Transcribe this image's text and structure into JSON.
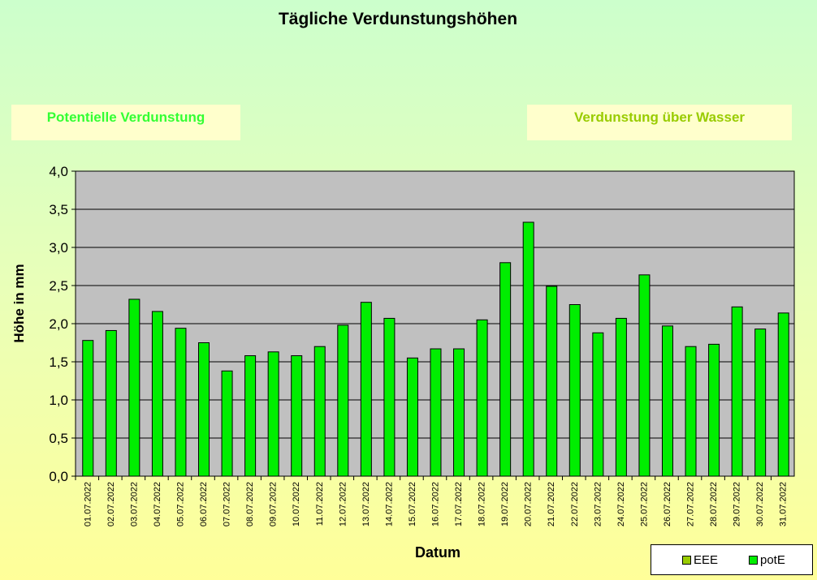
{
  "chart_data": {
    "type": "bar",
    "title": "Tägliche Verdunstungshöhen",
    "xlabel": "Datum",
    "ylabel": "Höhe in mm",
    "ylim": [
      0,
      4
    ],
    "yticks": [
      "0,0",
      "0,5",
      "1,0",
      "1,5",
      "2,0",
      "2,5",
      "3,0",
      "3,5",
      "4,0"
    ],
    "grid": true,
    "legend_position": "bottom-right",
    "categories": [
      "01.07.2022",
      "02.07.2022",
      "03.07.2022",
      "04.07.2022",
      "05.07.2022",
      "06.07.2022",
      "07.07.2022",
      "08.07.2022",
      "09.07.2022",
      "10.07.2022",
      "11.07.2022",
      "12.07.2022",
      "13.07.2022",
      "14.07.2022",
      "15.07.2022",
      "16.07.2022",
      "17.07.2022",
      "18.07.2022",
      "19.07.2022",
      "20.07.2022",
      "21.07.2022",
      "22.07.2022",
      "23.07.2022",
      "24.07.2022",
      "25.07.2022",
      "26.07.2022",
      "27.07.2022",
      "28.07.2022",
      "29.07.2022",
      "30.07.2022",
      "31.07.2022"
    ],
    "series": [
      {
        "name": "EEE",
        "color": "#99cc00",
        "values": [
          0,
          0,
          0,
          0,
          0,
          0,
          0,
          0,
          0,
          0,
          0,
          0,
          0,
          0,
          0,
          0,
          0,
          0,
          0,
          0,
          0,
          0,
          0,
          0,
          0,
          0,
          0,
          0,
          0,
          0,
          0
        ]
      },
      {
        "name": "potE",
        "color": "#00ee00",
        "values": [
          1.78,
          1.91,
          2.32,
          2.16,
          1.94,
          1.75,
          1.38,
          1.58,
          1.63,
          1.58,
          1.7,
          1.98,
          2.28,
          2.07,
          1.55,
          1.67,
          1.67,
          2.05,
          2.8,
          3.33,
          2.49,
          2.25,
          1.88,
          2.07,
          2.64,
          1.97,
          1.7,
          1.73,
          2.22,
          1.93,
          2.14
        ]
      }
    ]
  },
  "labels": {
    "box_left": "Potentielle Verdunstung",
    "box_right": "Verdunstung über Wasser"
  },
  "colors": {
    "plot_bg": "#c0c0c0",
    "bar_fill": "#00ee00",
    "eee_color": "#99cc00",
    "potE_color": "#00ee00",
    "box_left_text": "#33ff33",
    "box_right_text": "#99cc00"
  }
}
